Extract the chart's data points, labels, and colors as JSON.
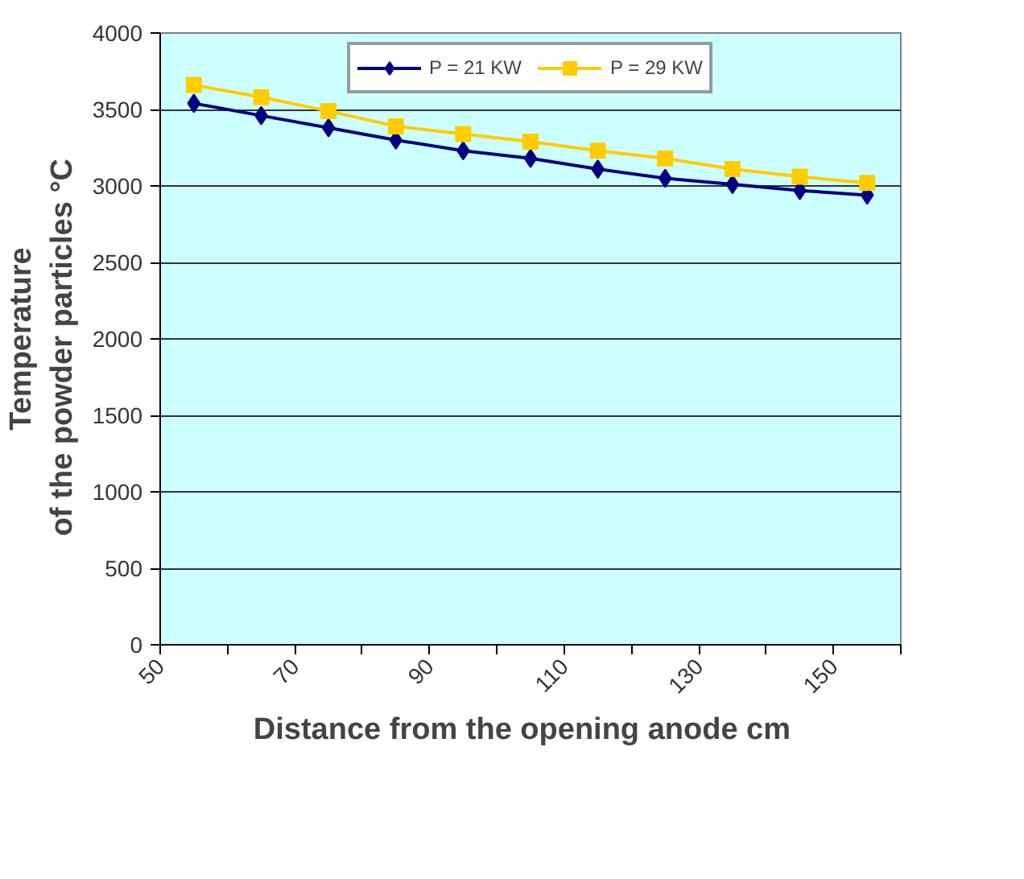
{
  "chart_data": {
    "type": "line",
    "xlabel": "Distance from the opening anode   cm",
    "ylabel": "Temperature\nof the powder particles   °C",
    "x": [
      55,
      65,
      75,
      85,
      95,
      105,
      115,
      125,
      135,
      145,
      155
    ],
    "series": [
      {
        "name": "P = 21 KW",
        "color": "#000080",
        "marker": "diamond",
        "values": [
          3540,
          3460,
          3380,
          3300,
          3230,
          3180,
          3110,
          3050,
          3010,
          2970,
          2940
        ]
      },
      {
        "name": "P = 29 KW",
        "color": "#ffcc00",
        "marker": "square",
        "values": [
          3660,
          3580,
          3490,
          3390,
          3340,
          3290,
          3230,
          3180,
          3110,
          3060,
          3020
        ]
      }
    ],
    "xlim": [
      50,
      160
    ],
    "ylim": [
      0,
      4000
    ],
    "xticks": [
      50,
      {
        "value": 60,
        "label": null
      },
      70,
      {
        "value": 80,
        "label": null
      },
      90,
      {
        "value": 100,
        "label": null
      },
      110,
      {
        "value": 120,
        "label": null
      },
      130,
      {
        "value": 140,
        "label": null
      },
      150,
      {
        "value": 160,
        "label": null
      }
    ],
    "yticks": [
      0,
      500,
      1000,
      1500,
      2000,
      2500,
      3000,
      3500,
      4000
    ],
    "grid": "y",
    "legend": "top",
    "line_style": "solid"
  }
}
